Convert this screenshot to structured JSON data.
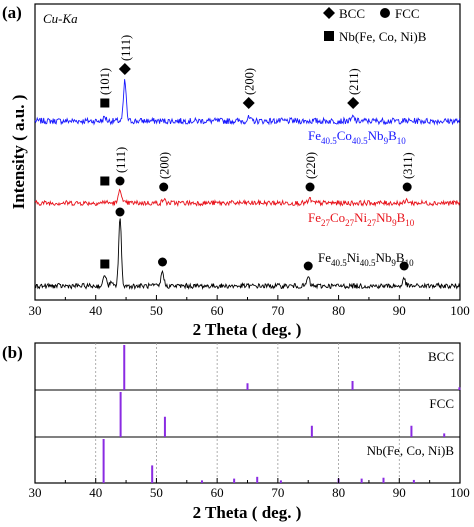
{
  "chart_data": [
    {
      "panel": "(a)",
      "type": "line",
      "annotation": "Cu-Ka",
      "xlabel": "2 Theta ( deg. )",
      "ylabel": "Intensity ( a.u. )",
      "xlim": [
        30,
        100
      ],
      "xticks": [
        "30",
        "40",
        "50",
        "60",
        "70",
        "80",
        "90",
        "100"
      ],
      "legend": [
        {
          "marker": "diamond",
          "label": "BCC"
        },
        {
          "marker": "circle",
          "label": "FCC"
        },
        {
          "marker": "square",
          "label": "Nb(Fe, Co, Ni)B"
        }
      ],
      "series": [
        {
          "name": "Fe40.5Co40.5Nb9B10",
          "name_parts": [
            [
              "Fe",
              ""
            ],
            [
              "40.5",
              "sub"
            ],
            [
              "Co",
              ""
            ],
            [
              "40.5",
              "sub"
            ],
            [
              "Nb",
              ""
            ],
            [
              "9",
              "sub"
            ],
            [
              "B",
              ""
            ],
            [
              "10",
              "sub"
            ]
          ],
          "color": "#1a1aff",
          "peaks": [
            {
              "x": 41.5,
              "marker": "square",
              "label": "(101)"
            },
            {
              "x": 44.8,
              "marker": "diamond",
              "label": "(111)"
            },
            {
              "x": 65.2,
              "marker": "diamond",
              "label": "(200)"
            },
            {
              "x": 82.4,
              "marker": "diamond",
              "label": "(211)"
            }
          ]
        },
        {
          "name": "Fe27Co27Ni27Nb9B10",
          "name_parts": [
            [
              "Fe",
              ""
            ],
            [
              "27",
              "sub"
            ],
            [
              "Co",
              ""
            ],
            [
              "27",
              "sub"
            ],
            [
              "Ni",
              ""
            ],
            [
              "27",
              "sub"
            ],
            [
              "Nb",
              ""
            ],
            [
              "9",
              "sub"
            ],
            [
              "B",
              ""
            ],
            [
              "10",
              "sub"
            ]
          ],
          "color": "#e8141c",
          "peaks": [
            {
              "x": 41.5,
              "marker": "square",
              "label": ""
            },
            {
              "x": 44.0,
              "marker": "circle",
              "label": "(111)"
            },
            {
              "x": 51.2,
              "marker": "circle",
              "label": "(200)"
            },
            {
              "x": 75.3,
              "marker": "circle",
              "label": "(220)"
            },
            {
              "x": 91.3,
              "marker": "circle",
              "label": "(311)"
            }
          ]
        },
        {
          "name": "Fe40.5Ni40.5Nb9B10",
          "name_parts": [
            [
              "Fe",
              ""
            ],
            [
              "40.5",
              "sub"
            ],
            [
              "Ni",
              ""
            ],
            [
              "40.5",
              "sub"
            ],
            [
              "Nb",
              ""
            ],
            [
              "9",
              "sub"
            ],
            [
              "B",
              ""
            ],
            [
              "10",
              "sub"
            ]
          ],
          "color": "#000000",
          "peaks": [
            {
              "x": 41.5,
              "marker": "square",
              "label": ""
            },
            {
              "x": 44.0,
              "marker": "circle",
              "label": ""
            },
            {
              "x": 51.0,
              "marker": "circle",
              "label": ""
            },
            {
              "x": 75.0,
              "marker": "circle",
              "label": ""
            },
            {
              "x": 90.8,
              "marker": "circle",
              "label": ""
            }
          ]
        }
      ]
    },
    {
      "panel": "(b)",
      "type": "bar",
      "xlabel": "2 Theta ( deg. )",
      "xlim": [
        30,
        100
      ],
      "xticks": [
        "30",
        "40",
        "50",
        "60",
        "70",
        "80",
        "90",
        "100"
      ],
      "bar_color": "#8a2be2",
      "references": [
        {
          "name": "BCC",
          "lines": [
            {
              "x": 44.7,
              "h": 1.0
            },
            {
              "x": 65.0,
              "h": 0.15
            },
            {
              "x": 82.3,
              "h": 0.2
            },
            {
              "x": 99.9,
              "h": 0.06
            }
          ]
        },
        {
          "name": "FCC",
          "lines": [
            {
              "x": 44.1,
              "h": 1.0
            },
            {
              "x": 51.4,
              "h": 0.45
            },
            {
              "x": 75.6,
              "h": 0.25
            },
            {
              "x": 92.0,
              "h": 0.25
            },
            {
              "x": 97.4,
              "h": 0.08
            }
          ]
        },
        {
          "name": "Nb(Fe, Co, Ni)B",
          "lines": [
            {
              "x": 41.3,
              "h": 1.0
            },
            {
              "x": 49.3,
              "h": 0.4
            },
            {
              "x": 57.5,
              "h": 0.06
            },
            {
              "x": 62.8,
              "h": 0.1
            },
            {
              "x": 66.6,
              "h": 0.14
            },
            {
              "x": 70.5,
              "h": 0.06
            },
            {
              "x": 80.0,
              "h": 0.1
            },
            {
              "x": 83.8,
              "h": 0.1
            },
            {
              "x": 87.4,
              "h": 0.12
            },
            {
              "x": 92.4,
              "h": 0.07
            }
          ]
        }
      ]
    }
  ]
}
